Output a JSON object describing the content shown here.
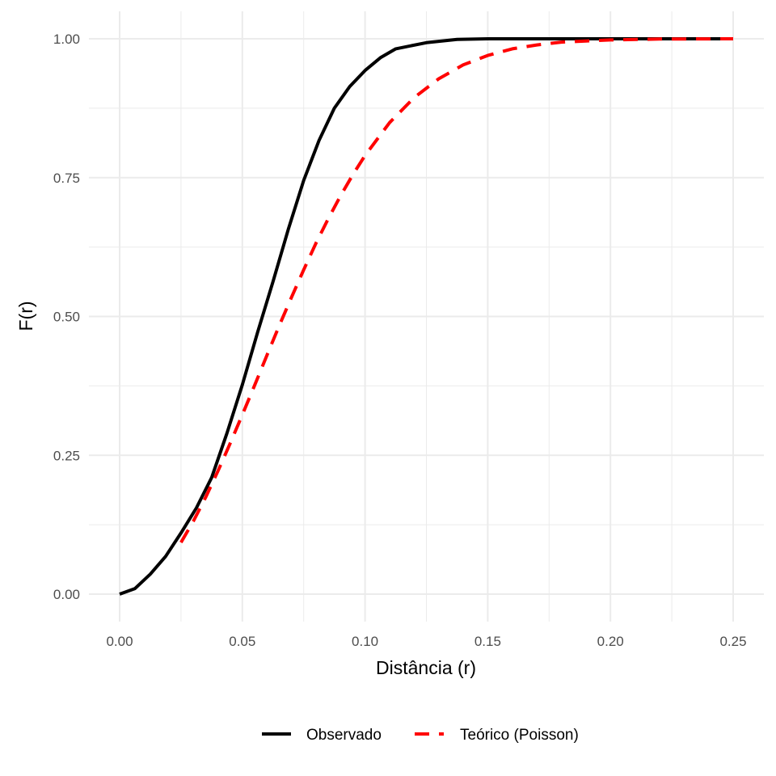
{
  "chart_data": {
    "type": "line",
    "title": "",
    "xlabel": "Distância (r)",
    "ylabel": "F(r)",
    "xlim": [
      0,
      0.25
    ],
    "ylim": [
      0,
      1
    ],
    "grid": true,
    "legend_position": "bottom",
    "x_ticks": [
      "0.00",
      "0.05",
      "0.10",
      "0.15",
      "0.20",
      "0.25"
    ],
    "y_ticks": [
      "0.00",
      "0.25",
      "0.50",
      "0.75",
      "1.00"
    ],
    "series": [
      {
        "name": "Observado",
        "color": "#000000",
        "style": "solid",
        "x": [
          0,
          0.00625,
          0.0125,
          0.01875,
          0.025,
          0.03125,
          0.0375,
          0.04375,
          0.05,
          0.05625,
          0.0625,
          0.06875,
          0.075,
          0.08125,
          0.0875,
          0.09375,
          0.1,
          0.10625,
          0.1125,
          0.125,
          0.1375,
          0.15,
          0.2,
          0.25
        ],
        "y": [
          0,
          0.01,
          0.036,
          0.068,
          0.11,
          0.155,
          0.21,
          0.29,
          0.377,
          0.472,
          0.563,
          0.657,
          0.745,
          0.817,
          0.875,
          0.914,
          0.943,
          0.966,
          0.982,
          0.993,
          0.999,
          1.0,
          1.0,
          1.0
        ]
      },
      {
        "name": "Teórico (Poisson)",
        "color": "#ff0000",
        "style": "dashed",
        "x": [
          0.025,
          0.03,
          0.035,
          0.04,
          0.045,
          0.05,
          0.055,
          0.06,
          0.065,
          0.07,
          0.075,
          0.08,
          0.085,
          0.09,
          0.095,
          0.1,
          0.11,
          0.12,
          0.13,
          0.14,
          0.15,
          0.16,
          0.17,
          0.18,
          0.19,
          0.2,
          0.22,
          0.25
        ],
        "y": [
          0.093,
          0.131,
          0.174,
          0.221,
          0.271,
          0.323,
          0.376,
          0.43,
          0.483,
          0.534,
          0.584,
          0.632,
          0.676,
          0.717,
          0.755,
          0.79,
          0.849,
          0.894,
          0.928,
          0.953,
          0.97,
          0.982,
          0.989,
          0.994,
          0.996,
          0.998,
          0.9995,
          1.0
        ]
      }
    ]
  }
}
